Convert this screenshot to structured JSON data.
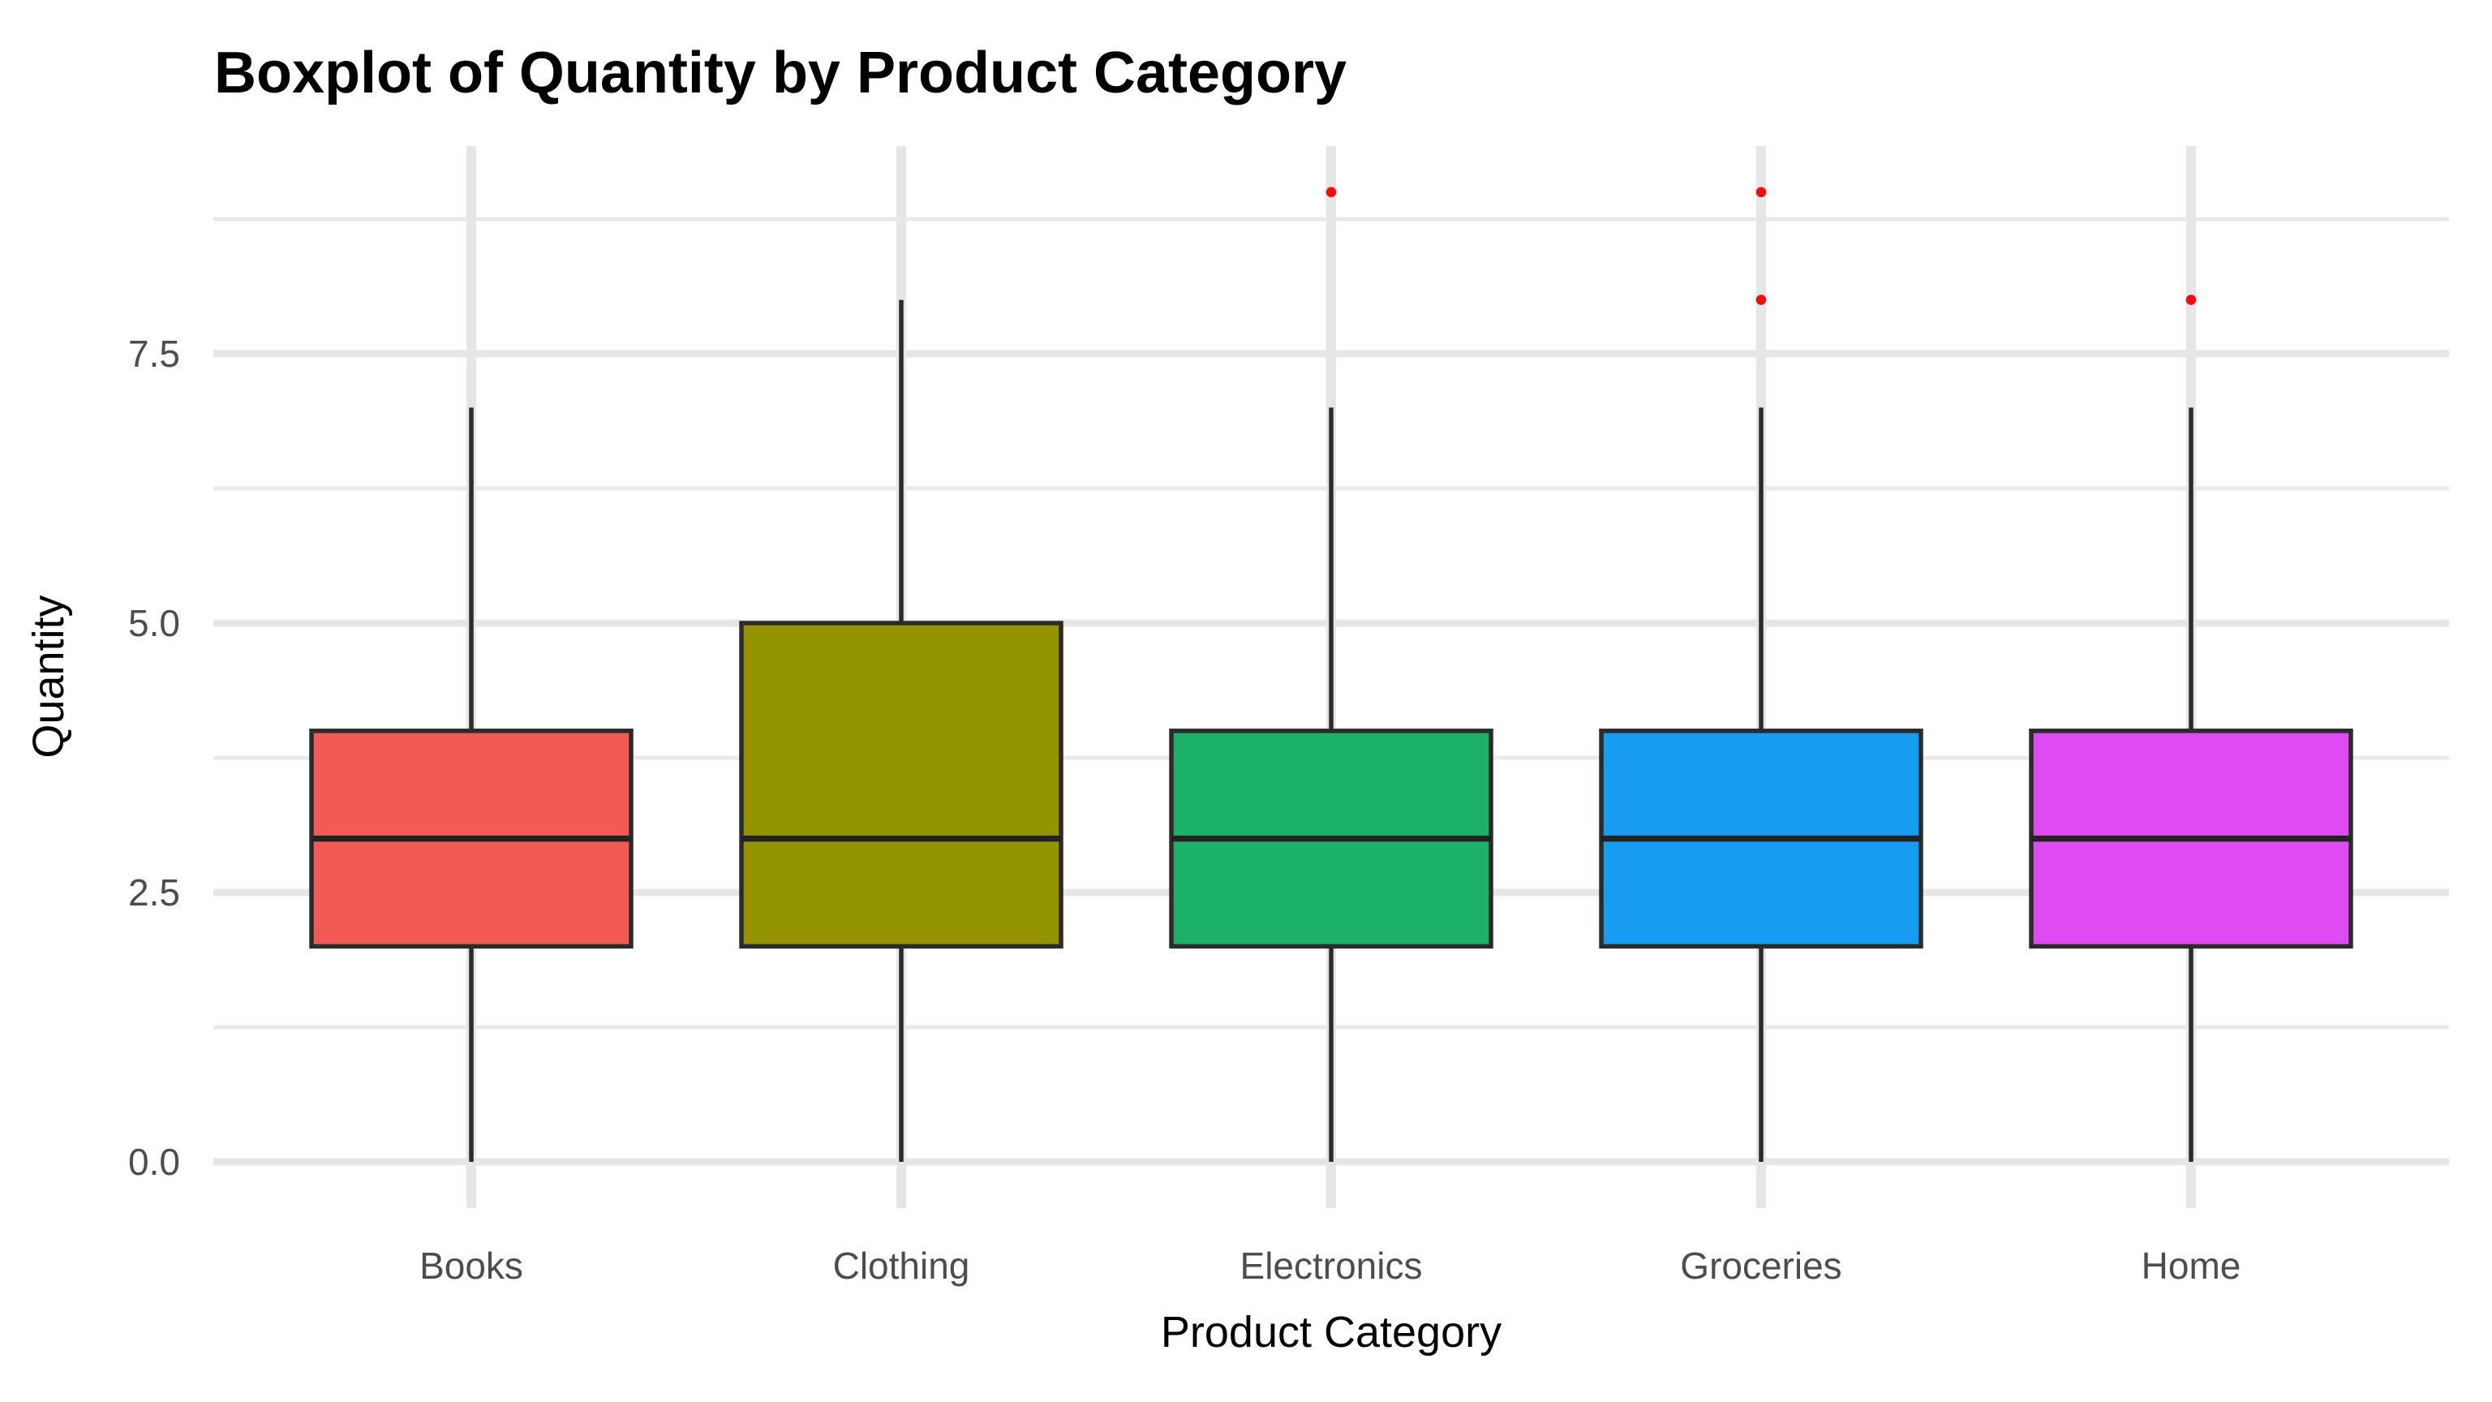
{
  "chart_data": {
    "type": "boxplot",
    "title": "Boxplot of Quantity by Product Category",
    "xlabel": "Product Category",
    "ylabel": "Quantity",
    "categories": [
      "Books",
      "Clothing",
      "Electronics",
      "Groceries",
      "Home"
    ],
    "series": [
      {
        "category": "Books",
        "color": "#F25B53",
        "whisker_low": 0,
        "q1": 2,
        "median": 3,
        "q3": 4,
        "whisker_high": 7,
        "outliers": []
      },
      {
        "category": "Clothing",
        "color": "#949403",
        "whisker_low": 0,
        "q1": 2,
        "median": 3,
        "q3": 5,
        "whisker_high": 8,
        "outliers": []
      },
      {
        "category": "Electronics",
        "color": "#1BB268",
        "whisker_low": 0,
        "q1": 2,
        "median": 3,
        "q3": 4,
        "whisker_high": 7,
        "outliers": [
          9
        ]
      },
      {
        "category": "Groceries",
        "color": "#169CF1",
        "whisker_low": 0,
        "q1": 2,
        "median": 3,
        "q3": 4,
        "whisker_high": 7,
        "outliers": [
          9,
          8
        ]
      },
      {
        "category": "Home",
        "color": "#DE4BF0",
        "whisker_low": 0,
        "q1": 2,
        "median": 3,
        "q3": 4,
        "whisker_high": 7,
        "outliers": [
          8
        ]
      }
    ],
    "y_ticks": [
      {
        "value": 0,
        "label": "0.0"
      },
      {
        "value": 2.5,
        "label": "2.5"
      },
      {
        "value": 5,
        "label": "5.0"
      },
      {
        "value": 7.5,
        "label": "7.5"
      }
    ],
    "y_minor": [
      1.25,
      3.75,
      6.25,
      8.75
    ],
    "ylim": [
      -0.43,
      9.43
    ],
    "outlier_color": "#F70D0D",
    "grid": true,
    "legend_position": "none"
  }
}
